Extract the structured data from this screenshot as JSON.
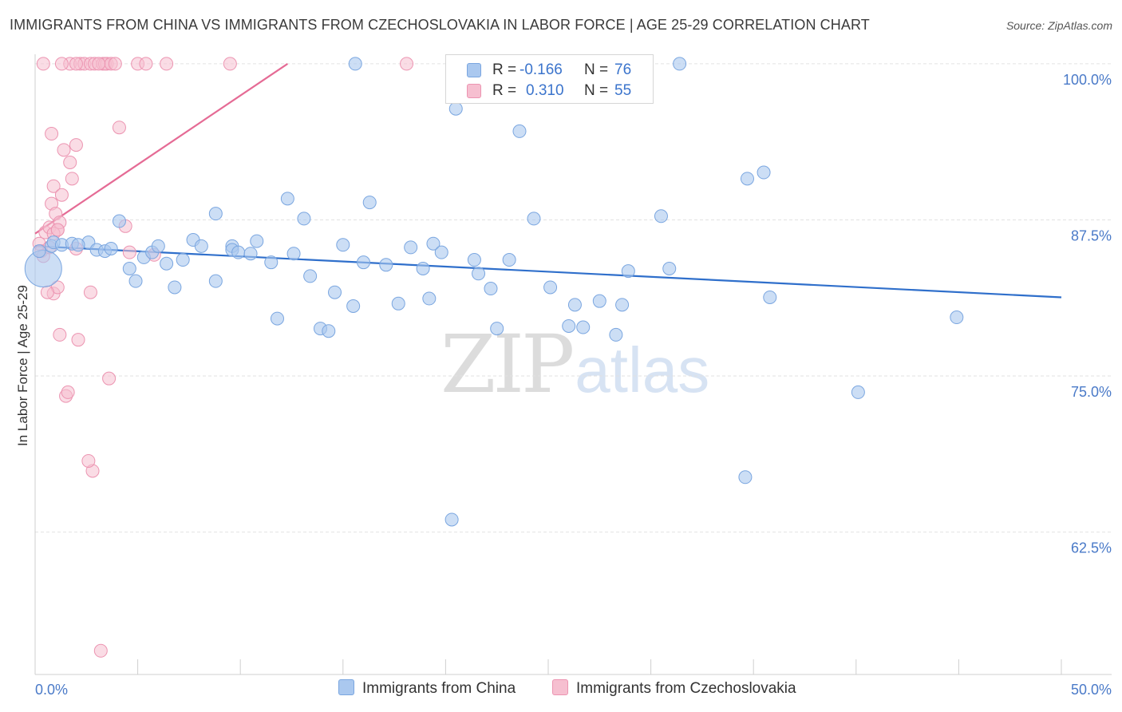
{
  "title": "IMMIGRANTS FROM CHINA VS IMMIGRANTS FROM CZECHOSLOVAKIA IN LABOR FORCE | AGE 25-29 CORRELATION CHART",
  "source": "Source: ZipAtlas.com",
  "watermark": {
    "zip": "ZIP",
    "atlas": "atlas"
  },
  "legend": {
    "r_label": "R =",
    "n_label": "N =",
    "series1": {
      "r": "-0.166",
      "n": "76"
    },
    "series2": {
      "r": "0.310",
      "n": "55"
    }
  },
  "bottom_legend": {
    "series1": "Immigrants from China",
    "series2": "Immigrants from Czechoslovakia"
  },
  "colors": {
    "blue_fill": "#aac8ef",
    "blue_stroke": "#7aa6e0",
    "blue_line": "#2f6fcb",
    "pink_fill": "#f6bfd0",
    "pink_stroke": "#ec94b1",
    "pink_line": "#e56b95",
    "grid": "#e2e2e2",
    "axis_label": "#4a7ac8"
  },
  "chart_data": {
    "type": "scatter",
    "title": "IMMIGRANTS FROM CHINA VS IMMIGRANTS FROM CZECHOSLOVAKIA IN LABOR FORCE | AGE 25-29 CORRELATION CHART",
    "xlabel": "",
    "ylabel": "In Labor Force | Age 25-29",
    "xlim": [
      0,
      50
    ],
    "ylim": [
      51.1,
      101.4
    ],
    "x_tick_labels": [
      "0.0%",
      "50.0%"
    ],
    "y_ticks": [
      62.5,
      75.0,
      87.5,
      100.0
    ],
    "y_tick_labels": [
      "62.5%",
      "75.0%",
      "87.5%",
      "100.0%"
    ],
    "grid": true,
    "legend_position": "top-center",
    "series": [
      {
        "name": "Immigrants from China",
        "r": -0.166,
        "n": 76,
        "trend": {
          "x0": 0,
          "y0": 85.4,
          "x1": 50,
          "y1": 81.3
        },
        "points": [
          [
            0.4,
            83.6
          ],
          [
            0.8,
            85.4
          ],
          [
            0.9,
            85.7
          ],
          [
            1.3,
            85.5
          ],
          [
            1.8,
            85.6
          ],
          [
            2.6,
            85.7
          ],
          [
            3.0,
            85.1
          ],
          [
            3.4,
            85.0
          ],
          [
            3.7,
            85.2
          ],
          [
            4.1,
            87.4
          ],
          [
            4.6,
            83.6
          ],
          [
            4.9,
            82.6
          ],
          [
            5.3,
            84.5
          ],
          [
            5.7,
            84.9
          ],
          [
            6.0,
            85.4
          ],
          [
            6.4,
            84.0
          ],
          [
            6.8,
            82.1
          ],
          [
            7.2,
            84.3
          ],
          [
            7.7,
            85.9
          ],
          [
            8.1,
            85.4
          ],
          [
            8.8,
            82.6
          ],
          [
            8.8,
            88.0
          ],
          [
            9.6,
            85.4
          ],
          [
            9.6,
            85.1
          ],
          [
            9.9,
            84.9
          ],
          [
            10.5,
            84.8
          ],
          [
            10.8,
            85.8
          ],
          [
            11.5,
            84.1
          ],
          [
            11.8,
            79.6
          ],
          [
            12.3,
            89.2
          ],
          [
            12.6,
            84.8
          ],
          [
            13.1,
            87.6
          ],
          [
            13.4,
            83.0
          ],
          [
            13.9,
            78.8
          ],
          [
            14.3,
            78.6
          ],
          [
            14.6,
            81.7
          ],
          [
            15.0,
            85.5
          ],
          [
            15.5,
            80.6
          ],
          [
            16.0,
            84.1
          ],
          [
            16.3,
            88.9
          ],
          [
            17.1,
            83.9
          ],
          [
            17.7,
            80.8
          ],
          [
            18.3,
            85.3
          ],
          [
            18.9,
            83.6
          ],
          [
            19.2,
            81.2
          ],
          [
            19.4,
            85.6
          ],
          [
            19.8,
            84.9
          ],
          [
            20.5,
            96.4
          ],
          [
            21.4,
            84.3
          ],
          [
            21.6,
            83.2
          ],
          [
            22.2,
            82.0
          ],
          [
            22.5,
            78.8
          ],
          [
            23.1,
            84.3
          ],
          [
            23.6,
            94.6
          ],
          [
            24.3,
            87.6
          ],
          [
            25.1,
            82.1
          ],
          [
            26.0,
            79.0
          ],
          [
            26.3,
            80.7
          ],
          [
            26.7,
            78.9
          ],
          [
            27.5,
            81.0
          ],
          [
            28.3,
            78.3
          ],
          [
            28.6,
            80.7
          ],
          [
            28.9,
            83.4
          ],
          [
            30.5,
            87.8
          ],
          [
            30.9,
            83.6
          ],
          [
            34.7,
            90.8
          ],
          [
            35.5,
            91.3
          ],
          [
            35.8,
            81.3
          ],
          [
            40.1,
            73.7
          ],
          [
            44.9,
            79.7
          ],
          [
            34.6,
            66.9
          ],
          [
            20.3,
            63.5
          ],
          [
            15.6,
            100.0
          ],
          [
            31.4,
            100.0
          ],
          [
            0.2,
            85.0
          ],
          [
            2.1,
            85.5
          ]
        ]
      },
      {
        "name": "Immigrants from Czechoslovakia",
        "r": 0.31,
        "n": 55,
        "trend": {
          "x0": 0,
          "y0": 86.4,
          "x1": 12.3,
          "y1": 100.0
        },
        "points": [
          [
            0.2,
            85.6
          ],
          [
            0.3,
            85.0
          ],
          [
            0.4,
            84.6
          ],
          [
            0.5,
            86.5
          ],
          [
            0.7,
            86.9
          ],
          [
            0.7,
            85.3
          ],
          [
            0.8,
            88.8
          ],
          [
            0.8,
            94.4
          ],
          [
            0.9,
            81.6
          ],
          [
            0.9,
            90.2
          ],
          [
            1.0,
            88.0
          ],
          [
            1.1,
            82.1
          ],
          [
            1.1,
            86.7
          ],
          [
            1.2,
            78.3
          ],
          [
            1.2,
            87.3
          ],
          [
            1.3,
            89.5
          ],
          [
            1.4,
            93.1
          ],
          [
            1.5,
            73.4
          ],
          [
            1.6,
            73.7
          ],
          [
            1.7,
            92.1
          ],
          [
            1.8,
            90.8
          ],
          [
            1.7,
            100.0
          ],
          [
            1.3,
            100.0
          ],
          [
            2.0,
            93.5
          ],
          [
            2.1,
            77.9
          ],
          [
            2.2,
            100.0
          ],
          [
            2.4,
            100.0
          ],
          [
            2.7,
            81.7
          ],
          [
            2.8,
            67.4
          ],
          [
            2.6,
            68.2
          ],
          [
            2.7,
            100.0
          ],
          [
            2.9,
            100.0
          ],
          [
            3.2,
            53.0
          ],
          [
            3.3,
            100.0
          ],
          [
            3.5,
            100.0
          ],
          [
            3.4,
            100.0
          ],
          [
            3.6,
            74.8
          ],
          [
            3.7,
            100.0
          ],
          [
            3.9,
            100.0
          ],
          [
            4.1,
            94.9
          ],
          [
            4.4,
            87.0
          ],
          [
            4.6,
            84.9
          ],
          [
            2.0,
            100.0
          ],
          [
            3.1,
            100.0
          ],
          [
            5.0,
            100.0
          ],
          [
            5.4,
            100.0
          ],
          [
            6.4,
            100.0
          ],
          [
            9.5,
            100.0
          ],
          [
            18.1,
            100.0
          ],
          [
            0.4,
            100.0
          ],
          [
            0.6,
            81.7
          ],
          [
            0.9,
            86.4
          ],
          [
            2.0,
            85.2
          ],
          [
            5.8,
            84.7
          ],
          [
            1.1,
            86.7
          ]
        ]
      }
    ]
  }
}
